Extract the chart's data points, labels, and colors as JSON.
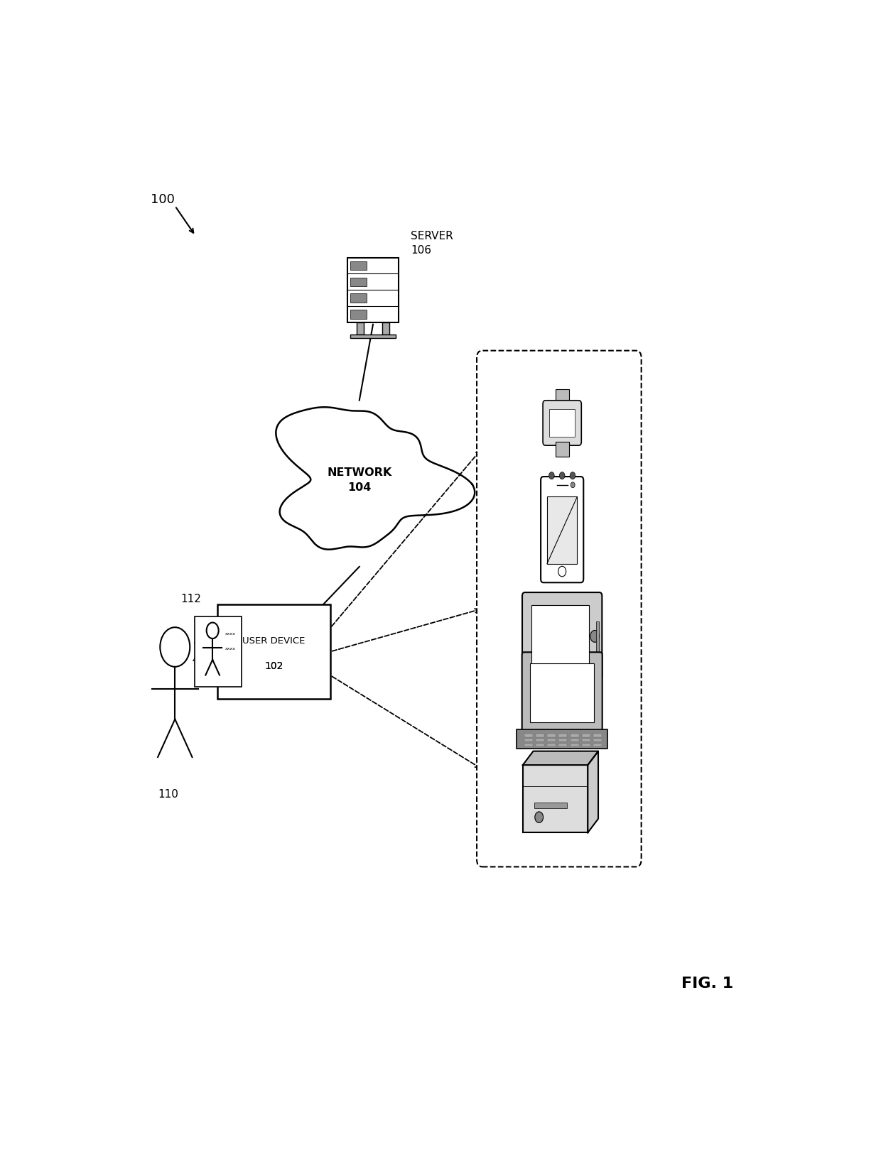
{
  "fig_label": "FIG. 1",
  "diagram_label": "100",
  "bg_color": "#ffffff",
  "line_color": "#000000",
  "server_label": "SERVER\n106",
  "network_label": "NETWORK\n104",
  "user_device_label": "USER DEVICE\n102",
  "user_label": "110",
  "credential_label": "112"
}
